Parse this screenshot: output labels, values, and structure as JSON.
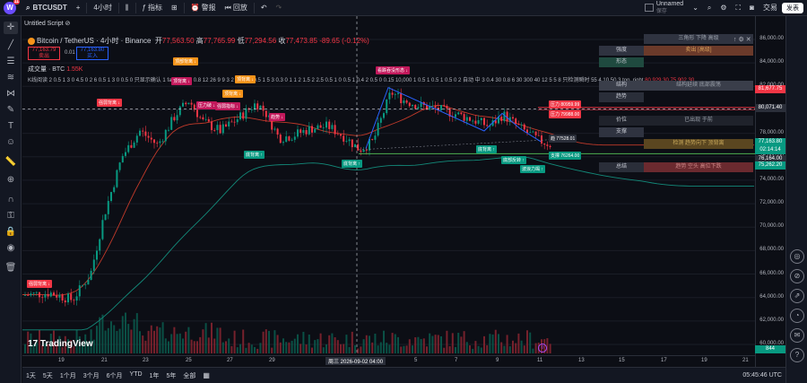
{
  "topbar": {
    "logo_letter": "W",
    "logo_badge": "11",
    "symbol": "BTCUSDT",
    "add_symbol": "+",
    "interval": "4小时",
    "candles_icon": "candle-icon",
    "indicators_label": "指标",
    "alert_label": "警报",
    "replay_label": "回放",
    "layout_name": "Unnamed",
    "layout_sub": "保存",
    "trade_label": "交易",
    "publish_label": "发表"
  },
  "script_tab": {
    "name": "Untitled Script",
    "icon": "⊘"
  },
  "legend": {
    "pair": "Bitcoin / TetherUS · 4小时 · Binance",
    "open_label": "开",
    "open": "77,563.50",
    "high_label": "高",
    "high": "77,765.99",
    "low_label": "低",
    "low": "77,294.56",
    "close_label": "收",
    "close": "77,473.85",
    "change": "-89.65 (-0.12%)",
    "sell_price": "77,163.79",
    "sell_label": "卖出",
    "spread": "0.01",
    "buy_price": "77,163.80",
    "buy_label": "买入",
    "volume_label": "成交量 · BTC",
    "volume_value": "1.55K",
    "indicator_line": "K线阅读 2 0.5 1 3 0 4.5 0 2 6 0.5 1 3 0 0.5 0 只显示确认 1 false 0 1 2 0.8 12 26 9 9 3 2 3 0 1 4 0.5 1 5 3 0.3 0 1 1 2 1.5 2 2.5 0.5 1 0 0.5 1 0.4 2 0.5 0 0.15 10,000 1 0.5 1 0.5 1 0.5 0 2 自动 中 3 0.4 30 0.8 6 30 300 40 12 5 5 8 只检测瞬时 55 4 10 50 3 top_right",
    "extra_values": "80,929.30  75,902.30"
  },
  "y_axis": {
    "ticks": [
      "86,000.00",
      "84,000.00",
      "82,000.00",
      "80,000.00",
      "78,000.00",
      "76,000.00",
      "74,000.00",
      "72,000.00",
      "70,000.00",
      "68,000.00",
      "66,000.00",
      "64,000.00",
      "62,000.00",
      "60,000.00"
    ],
    "tags": [
      {
        "text": "81,677.75",
        "color": "#f23645"
      },
      {
        "text": "80,071.40",
        "color": "#2a2e39"
      },
      {
        "text": "77,163.80",
        "color": "#089981"
      },
      {
        "text": "02:14:14",
        "color": "#089981"
      },
      {
        "text": "76,164.00",
        "color": "#2a2e39"
      },
      {
        "text": "75,262.20",
        "color": "#089981"
      },
      {
        "text": "844",
        "color": "#089981"
      }
    ]
  },
  "x_axis": {
    "ticks": [
      "19",
      "21",
      "23",
      "25",
      "27",
      "29",
      "周三 2026-09-02",
      "04:00",
      "5",
      "7",
      "9",
      "11",
      "13",
      "15",
      "17",
      "19",
      "21"
    ],
    "cursor_label": "周三 2026-09-02  04:00"
  },
  "signals": [
    {
      "text": "强弱背离 ↓",
      "color": "#f23645"
    },
    {
      "text": "顶部背离 ↓",
      "color": "#f7931a"
    },
    {
      "text": "顶背离 ↓",
      "color": "#c2185b"
    },
    {
      "text": "压力破 ↓",
      "color": "#c2185b"
    },
    {
      "text": "强弱指标 ↓",
      "color": "#c2185b"
    },
    {
      "text": "顶背离 ↓",
      "color": "#f7931a"
    },
    {
      "text": "顶背离 ↓",
      "color": "#f7931a"
    },
    {
      "text": "趋势 ↓",
      "color": "#c2185b"
    },
    {
      "text": "底背离 ↑",
      "color": "#089981"
    },
    {
      "text": "底背离 ↑",
      "color": "#089981"
    },
    {
      "text": "看跌吞没形态 ↓",
      "color": "#c2185b"
    },
    {
      "text": "底背离 ↑",
      "color": "#089981"
    },
    {
      "text": "底部反转 ↑",
      "color": "#089981"
    },
    {
      "text": "波浪力竭 ↑",
      "color": "#089981"
    },
    {
      "text": "压力 80959.99",
      "color": "#f23645"
    },
    {
      "text": "压力 79988.00",
      "color": "#f23645"
    },
    {
      "text": "趋 77528.01",
      "color": "#2a2e39"
    },
    {
      "text": "支撑 76264.00",
      "color": "#089981"
    },
    {
      "text": "强弱背离 ↓",
      "color": "#f23645"
    }
  ],
  "panel": {
    "rows": [
      {
        "label": "",
        "value": "三角形 下降 高级",
        "lbg": "#1f4a3f",
        "vbg": "#2f3340",
        "vcolor": "#9aa0aa"
      },
      {
        "label": "强度",
        "value": "卖出 [高级]",
        "lbg": "#2f3340",
        "vbg": "#6b3a2a",
        "vcolor": "#d69e5a"
      },
      {
        "label": "形态",
        "value": "",
        "lbg": "#1f4a3f",
        "vbg": "#5a1f25",
        "vcolor": "#fff"
      },
      {
        "label": "",
        "value": "",
        "lbg": "#2f3340",
        "vbg": "#2a2e39",
        "vcolor": "#fff"
      },
      {
        "label": "结构",
        "value": "结构延续 底部震荡",
        "lbg": "#3a3e4a",
        "vbg": "#3a3e4a",
        "vcolor": "#9aa0aa"
      },
      {
        "label": "趋势",
        "value": "",
        "lbg": "#2a2e39",
        "vbg": "#5a1f25",
        "vcolor": "#fff"
      },
      {
        "label": "",
        "value": "",
        "lbg": "#2a2e39",
        "vbg": "#2a2e39",
        "vcolor": "#fff"
      },
      {
        "label": "价位",
        "value": "已出现 于前",
        "lbg": "#1f222b",
        "vbg": "#1f222b",
        "vcolor": "#9aa0aa"
      },
      {
        "label": "支撑",
        "value": "",
        "lbg": "#2f3340",
        "vbg": "#7a5a10",
        "vcolor": "#fff"
      },
      {
        "label": "",
        "value": "检测 趋势向下 顶背离",
        "lbg": "#2f3340",
        "vbg": "#5a4620",
        "vcolor": "#c9a95a"
      },
      {
        "label": "",
        "value": "",
        "lbg": "#1f222b",
        "vbg": "#1f222b",
        "vcolor": "#fff"
      },
      {
        "label": "总结",
        "value": "趋势 空头 高位下跌",
        "lbg": "#2a2e39",
        "vbg": "#6b2a2f",
        "vcolor": "#d08a8a"
      }
    ]
  },
  "bottombar": {
    "ranges": [
      "1天",
      "5天",
      "1个月",
      "3个月",
      "6个月",
      "YTD",
      "1年",
      "5年",
      "全部"
    ],
    "calendar_icon": "calendar-icon",
    "clock": "05:45:46 UTC"
  },
  "brand": "TradingView",
  "chart_data": {
    "type": "candlestick",
    "x": [
      "19",
      "21",
      "23",
      "25",
      "27",
      "29",
      "周三 2026-09-02",
      "5",
      "7",
      "9",
      "11"
    ],
    "close": [
      64000,
      65000,
      77500,
      79500,
      79000,
      77500,
      76500,
      80000,
      79000,
      78000,
      77200
    ],
    "ylim": [
      60000,
      86000
    ],
    "volume_color_up": "#089981",
    "volume_color_down": "#f23645"
  }
}
